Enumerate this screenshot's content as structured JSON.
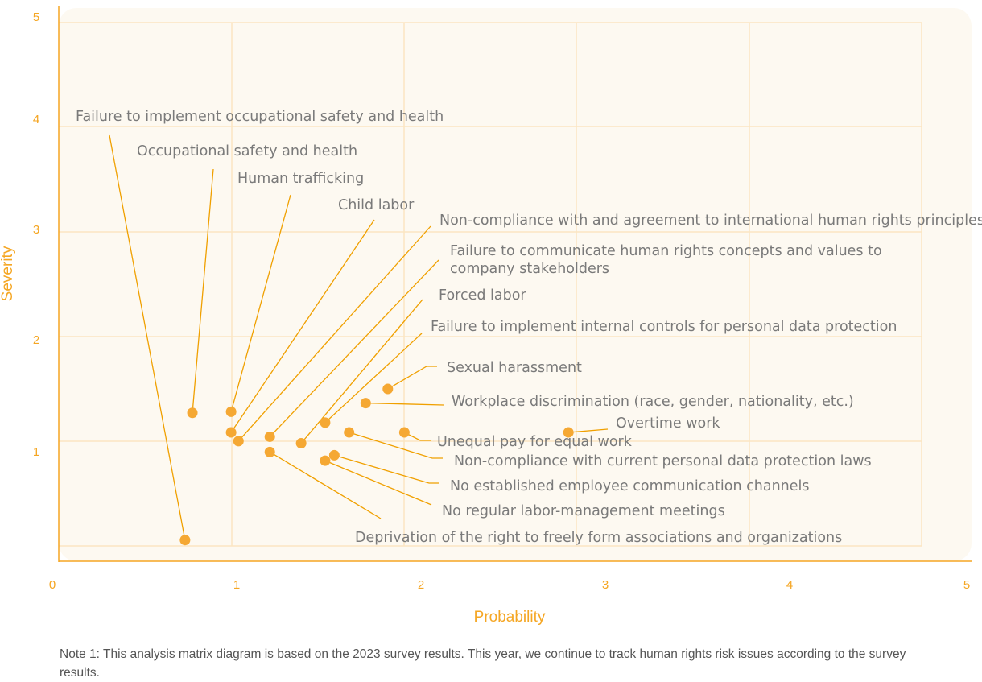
{
  "chart_data": {
    "type": "scatter",
    "title": "",
    "xlabel": "Probability",
    "ylabel": "Severity",
    "xlim": [
      0,
      5
    ],
    "ylim": [
      0,
      5
    ],
    "xticks": [
      "0",
      "1",
      "2",
      "3",
      "4",
      "5"
    ],
    "yticks": [
      "1",
      "2",
      "3",
      "4",
      "5"
    ],
    "grid": true,
    "points": [
      {
        "label": [
          "Failure to implement occupational safety and health"
        ],
        "x": 0.72,
        "y": 0.18
      },
      {
        "label": [
          "Occupational safety and health"
        ],
        "x": 0.76,
        "y": 1.35
      },
      {
        "label": [
          "Human trafficking"
        ],
        "x": 0.97,
        "y": 1.36
      },
      {
        "label": [
          "Child labor"
        ],
        "x": 0.97,
        "y": 1.17
      },
      {
        "label": [
          "Non-compliance with and agreement to international human rights principles"
        ],
        "x": 1.01,
        "y": 1.09
      },
      {
        "label": [
          "Failure to communicate human rights concepts and values to",
          "company stakeholders"
        ],
        "x": 1.18,
        "y": 1.13
      },
      {
        "label": [
          "Forced labor"
        ],
        "x": 1.35,
        "y": 1.07
      },
      {
        "label": [
          "Failure to implement internal controls for personal data protection"
        ],
        "x": 1.48,
        "y": 1.26
      },
      {
        "label": [
          "Sexual harassment"
        ],
        "x": 1.82,
        "y": 1.57
      },
      {
        "label": [
          "Workplace discrimination (race, gender, nationality, etc.)"
        ],
        "x": 1.7,
        "y": 1.44
      },
      {
        "label": [
          "Overtime work"
        ],
        "x": 2.8,
        "y": 1.17
      },
      {
        "label": [
          "Unequal pay for equal work"
        ],
        "x": 1.91,
        "y": 1.17
      },
      {
        "label": [
          "Non-compliance with current personal data protection laws"
        ],
        "x": 1.61,
        "y": 1.17
      },
      {
        "label": [
          "No established employee communication channels"
        ],
        "x": 1.53,
        "y": 0.96
      },
      {
        "label": [
          "No regular labor-management meetings"
        ],
        "x": 1.48,
        "y": 0.91
      },
      {
        "label": [
          "Deprivation of the right to freely form associations and organizations"
        ],
        "x": 1.18,
        "y": 0.99
      }
    ]
  },
  "note": "Note 1: This analysis matrix diagram is based on the 2023 survey results. This year, we continue to track human rights risk issues according to the survey results.",
  "colors": {
    "accent": "#f5a623",
    "dot": "#f5a833",
    "panel": "#fdf9f1",
    "grid": "#fbe6c2",
    "label": "#7a7a7a"
  }
}
